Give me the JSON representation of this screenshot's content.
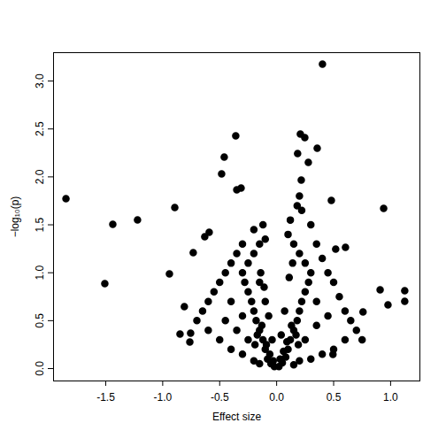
{
  "chart_data": {
    "type": "scatter",
    "x_label": "Effect size",
    "y_label": "−log₁₀(p)",
    "color": "#000000",
    "marker": "circle",
    "xlim": [
      -1.958,
      1.257
    ],
    "ylim": [
      -0.129,
      3.296
    ],
    "xticks": [
      -1.5,
      {
        "value": -1,
        "label": "-1.0"
      },
      -0.5,
      {
        "value": 0,
        "label": "0.0"
      },
      0.5,
      {
        "value": 1,
        "label": "1.0"
      }
    ],
    "yticks": [
      {
        "value": 0,
        "label": "0.0"
      },
      0.5,
      {
        "value": 1,
        "label": "1.0"
      },
      1.5,
      {
        "value": 2,
        "label": "2.0"
      },
      2.5,
      {
        "value": 3,
        "label": "3.0"
      }
    ],
    "grid": false,
    "x": [
      -1.849,
      -1.438,
      -1.508,
      -1.221,
      -0.894,
      -0.941,
      0.402,
      -0.359,
      0.208,
      0.247,
      0.356,
      -0.46,
      -0.483,
      0.216,
      0.184,
      0.278,
      -0.35,
      -0.312,
      0.48,
      0.939,
      0.908,
      1.124,
      1.124,
      0.977,
      0.758,
      0.494,
      0.604,
      0.518,
      -0.592,
      -0.631,
      -0.732,
      -0.81,
      -0.848,
      -0.755,
      -0.762,
      -0.02,
      -0.05,
      -0.08,
      -0.1,
      -0.12,
      -0.15,
      -0.18,
      -0.2,
      -0.22,
      -0.25,
      -0.28,
      -0.3,
      -0.25,
      -0.2,
      -0.15,
      -0.1,
      -0.12,
      -0.2,
      -0.3,
      -0.35,
      -0.4,
      -0.45,
      -0.5,
      -0.55,
      -0.6,
      -0.65,
      -0.7,
      -0.6,
      -0.5,
      -0.4,
      -0.3,
      -0.2,
      -0.15,
      -0.25,
      -0.35,
      -0.45,
      -0.3,
      -0.4,
      -0.15,
      -0.1,
      0.02,
      0.05,
      0.08,
      0.1,
      0.12,
      0.15,
      0.18,
      0.2,
      0.22,
      0.25,
      0.28,
      0.3,
      0.25,
      0.2,
      0.15,
      0.1,
      0.12,
      0.18,
      0.2,
      0.22,
      0.3,
      0.35,
      0.4,
      0.45,
      0.5,
      0.55,
      0.6,
      0.65,
      0.7,
      0.75,
      0.6,
      0.5,
      0.4,
      0.3,
      0.2,
      0.15,
      0.25,
      0.35,
      0.45,
      0.35,
      -0.03,
      -0.06,
      -0.09,
      -0.13,
      -0.17,
      0.03,
      0.06,
      0.09,
      0.13,
      0.17,
      -0.07,
      -0.11,
      0.07,
      0.11,
      -0.04,
      0.04,
      -0.14,
      0.14,
      -0.19,
      0.19
    ],
    "values": [
      1.773,
      1.505,
      0.886,
      1.551,
      1.681,
      0.988,
      3.176,
      2.428,
      2.447,
      2.41,
      2.299,
      2.207,
      2.031,
      1.967,
      2.244,
      2.151,
      1.865,
      1.884,
      1.754,
      1.671,
      0.822,
      0.813,
      0.702,
      0.665,
      0.591,
      0.148,
      1.265,
      1.247,
      1.422,
      1.376,
      1.21,
      0.646,
      0.36,
      0.369,
      0.277,
      0.02,
      0.05,
      0.1,
      0.2,
      0.3,
      0.4,
      0.5,
      0.6,
      0.7,
      0.8,
      0.9,
      1.0,
      1.1,
      1.2,
      1.3,
      1.35,
      1.5,
      1.45,
      1.3,
      1.2,
      1.1,
      1.0,
      0.9,
      0.8,
      0.7,
      0.6,
      0.5,
      0.4,
      0.3,
      0.2,
      0.15,
      0.08,
      0.05,
      0.3,
      0.4,
      0.5,
      0.55,
      0.7,
      0.9,
      0.7,
      0.02,
      0.06,
      0.12,
      0.2,
      0.3,
      0.4,
      0.5,
      0.6,
      0.7,
      0.8,
      0.9,
      1.0,
      1.1,
      1.2,
      1.3,
      1.4,
      1.55,
      1.7,
      1.8,
      1.65,
      1.5,
      1.3,
      1.15,
      1.0,
      0.9,
      0.75,
      0.6,
      0.5,
      0.4,
      0.3,
      0.3,
      0.2,
      0.15,
      0.1,
      0.08,
      0.04,
      0.3,
      0.45,
      0.55,
      0.7,
      0.08,
      0.15,
      0.25,
      0.45,
      0.35,
      0.1,
      0.18,
      0.28,
      0.45,
      0.35,
      0.55,
      0.85,
      0.6,
      0.95,
      0.3,
      0.35,
      1.0,
      1.1,
      0.25,
      0.25
    ]
  }
}
